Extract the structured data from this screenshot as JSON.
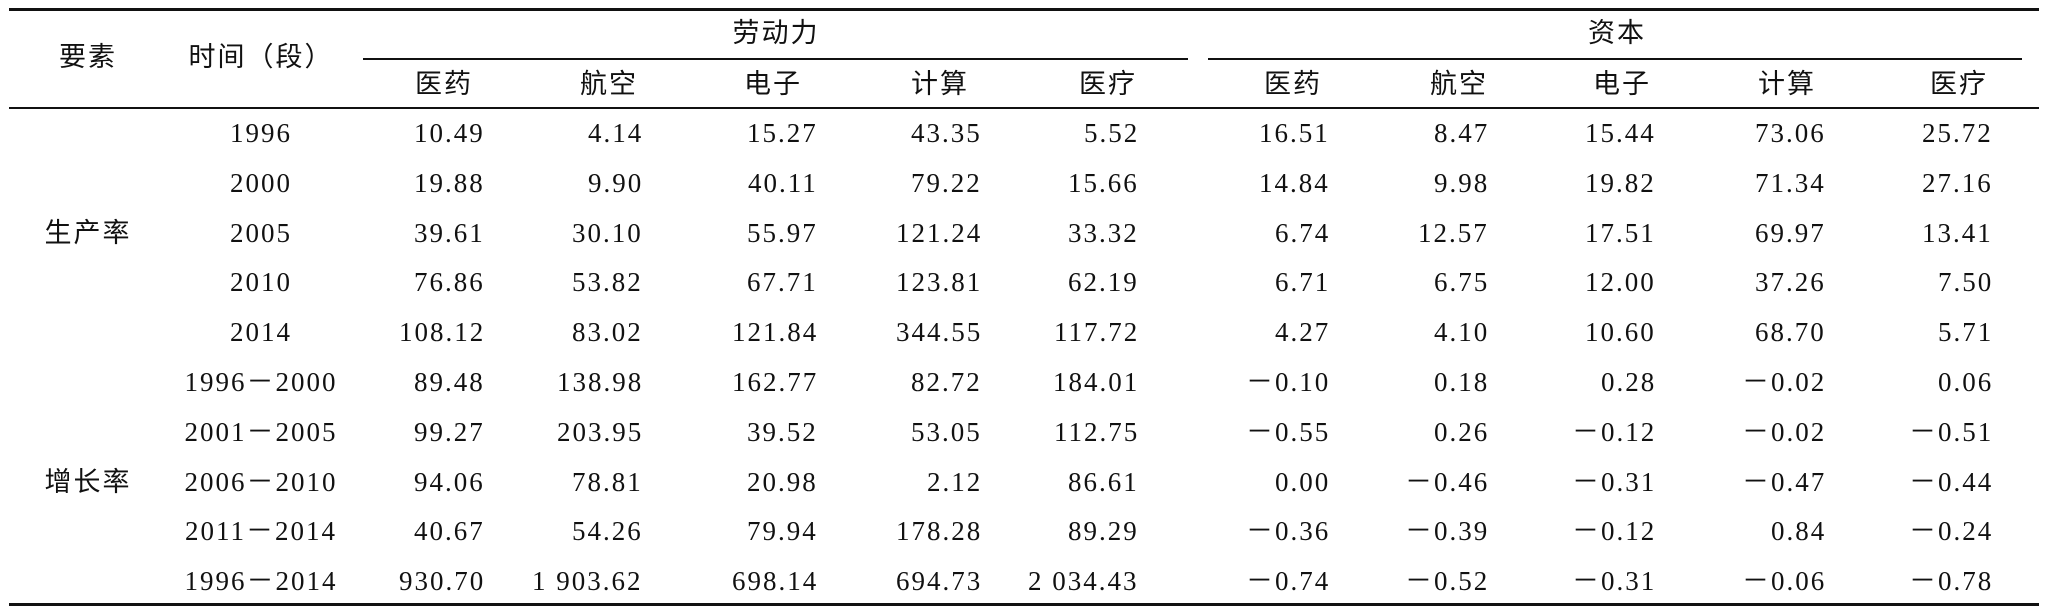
{
  "table": {
    "corner": [
      "要素",
      "时间（段）"
    ],
    "groups": [
      {
        "label": "劳动力",
        "columns": [
          "医药",
          "航空",
          "电子",
          "计算",
          "医疗"
        ]
      },
      {
        "label": "资本",
        "columns": [
          "医药",
          "航空",
          "电子",
          "计算",
          "医疗"
        ]
      }
    ],
    "sections": [
      {
        "label": "生产率",
        "rows": [
          {
            "period": "1996",
            "values": [
              "10.49",
              "4.14",
              "15.27",
              "43.35",
              "5.52",
              "16.51",
              "8.47",
              "15.44",
              "73.06",
              "25.72"
            ]
          },
          {
            "period": "2000",
            "values": [
              "19.88",
              "9.90",
              "40.11",
              "79.22",
              "15.66",
              "14.84",
              "9.98",
              "19.82",
              "71.34",
              "27.16"
            ]
          },
          {
            "period": "2005",
            "values": [
              "39.61",
              "30.10",
              "55.97",
              "121.24",
              "33.32",
              "6.74",
              "12.57",
              "17.51",
              "69.97",
              "13.41"
            ]
          },
          {
            "period": "2010",
            "values": [
              "76.86",
              "53.82",
              "67.71",
              "123.81",
              "62.19",
              "6.71",
              "6.75",
              "12.00",
              "37.26",
              "7.50"
            ]
          },
          {
            "period": "2014",
            "values": [
              "108.12",
              "83.02",
              "121.84",
              "344.55",
              "117.72",
              "4.27",
              "4.10",
              "10.60",
              "68.70",
              "5.71"
            ]
          }
        ]
      },
      {
        "label": "增长率",
        "rows": [
          {
            "period": "1996－2000",
            "values": [
              "89.48",
              "138.98",
              "162.77",
              "82.72",
              "184.01",
              "－0.10",
              "0.18",
              "0.28",
              "－0.02",
              "0.06"
            ]
          },
          {
            "period": "2001－2005",
            "values": [
              "99.27",
              "203.95",
              "39.52",
              "53.05",
              "112.75",
              "－0.55",
              "0.26",
              "－0.12",
              "－0.02",
              "－0.51"
            ]
          },
          {
            "period": "2006－2010",
            "values": [
              "94.06",
              "78.81",
              "20.98",
              "2.12",
              "86.61",
              "0.00",
              "－0.46",
              "－0.31",
              "－0.47",
              "－0.44"
            ]
          },
          {
            "period": "2011－2014",
            "values": [
              "40.67",
              "54.26",
              "79.94",
              "178.28",
              "89.29",
              "－0.36",
              "－0.39",
              "－0.12",
              "0.84",
              "－0.24"
            ]
          },
          {
            "period": "1996－2014",
            "values": [
              "930.70",
              "1 903.62",
              "698.14",
              "694.73",
              "2 034.43",
              "－0.74",
              "－0.52",
              "－0.31",
              "－0.06",
              "－0.78"
            ]
          }
        ]
      }
    ]
  }
}
